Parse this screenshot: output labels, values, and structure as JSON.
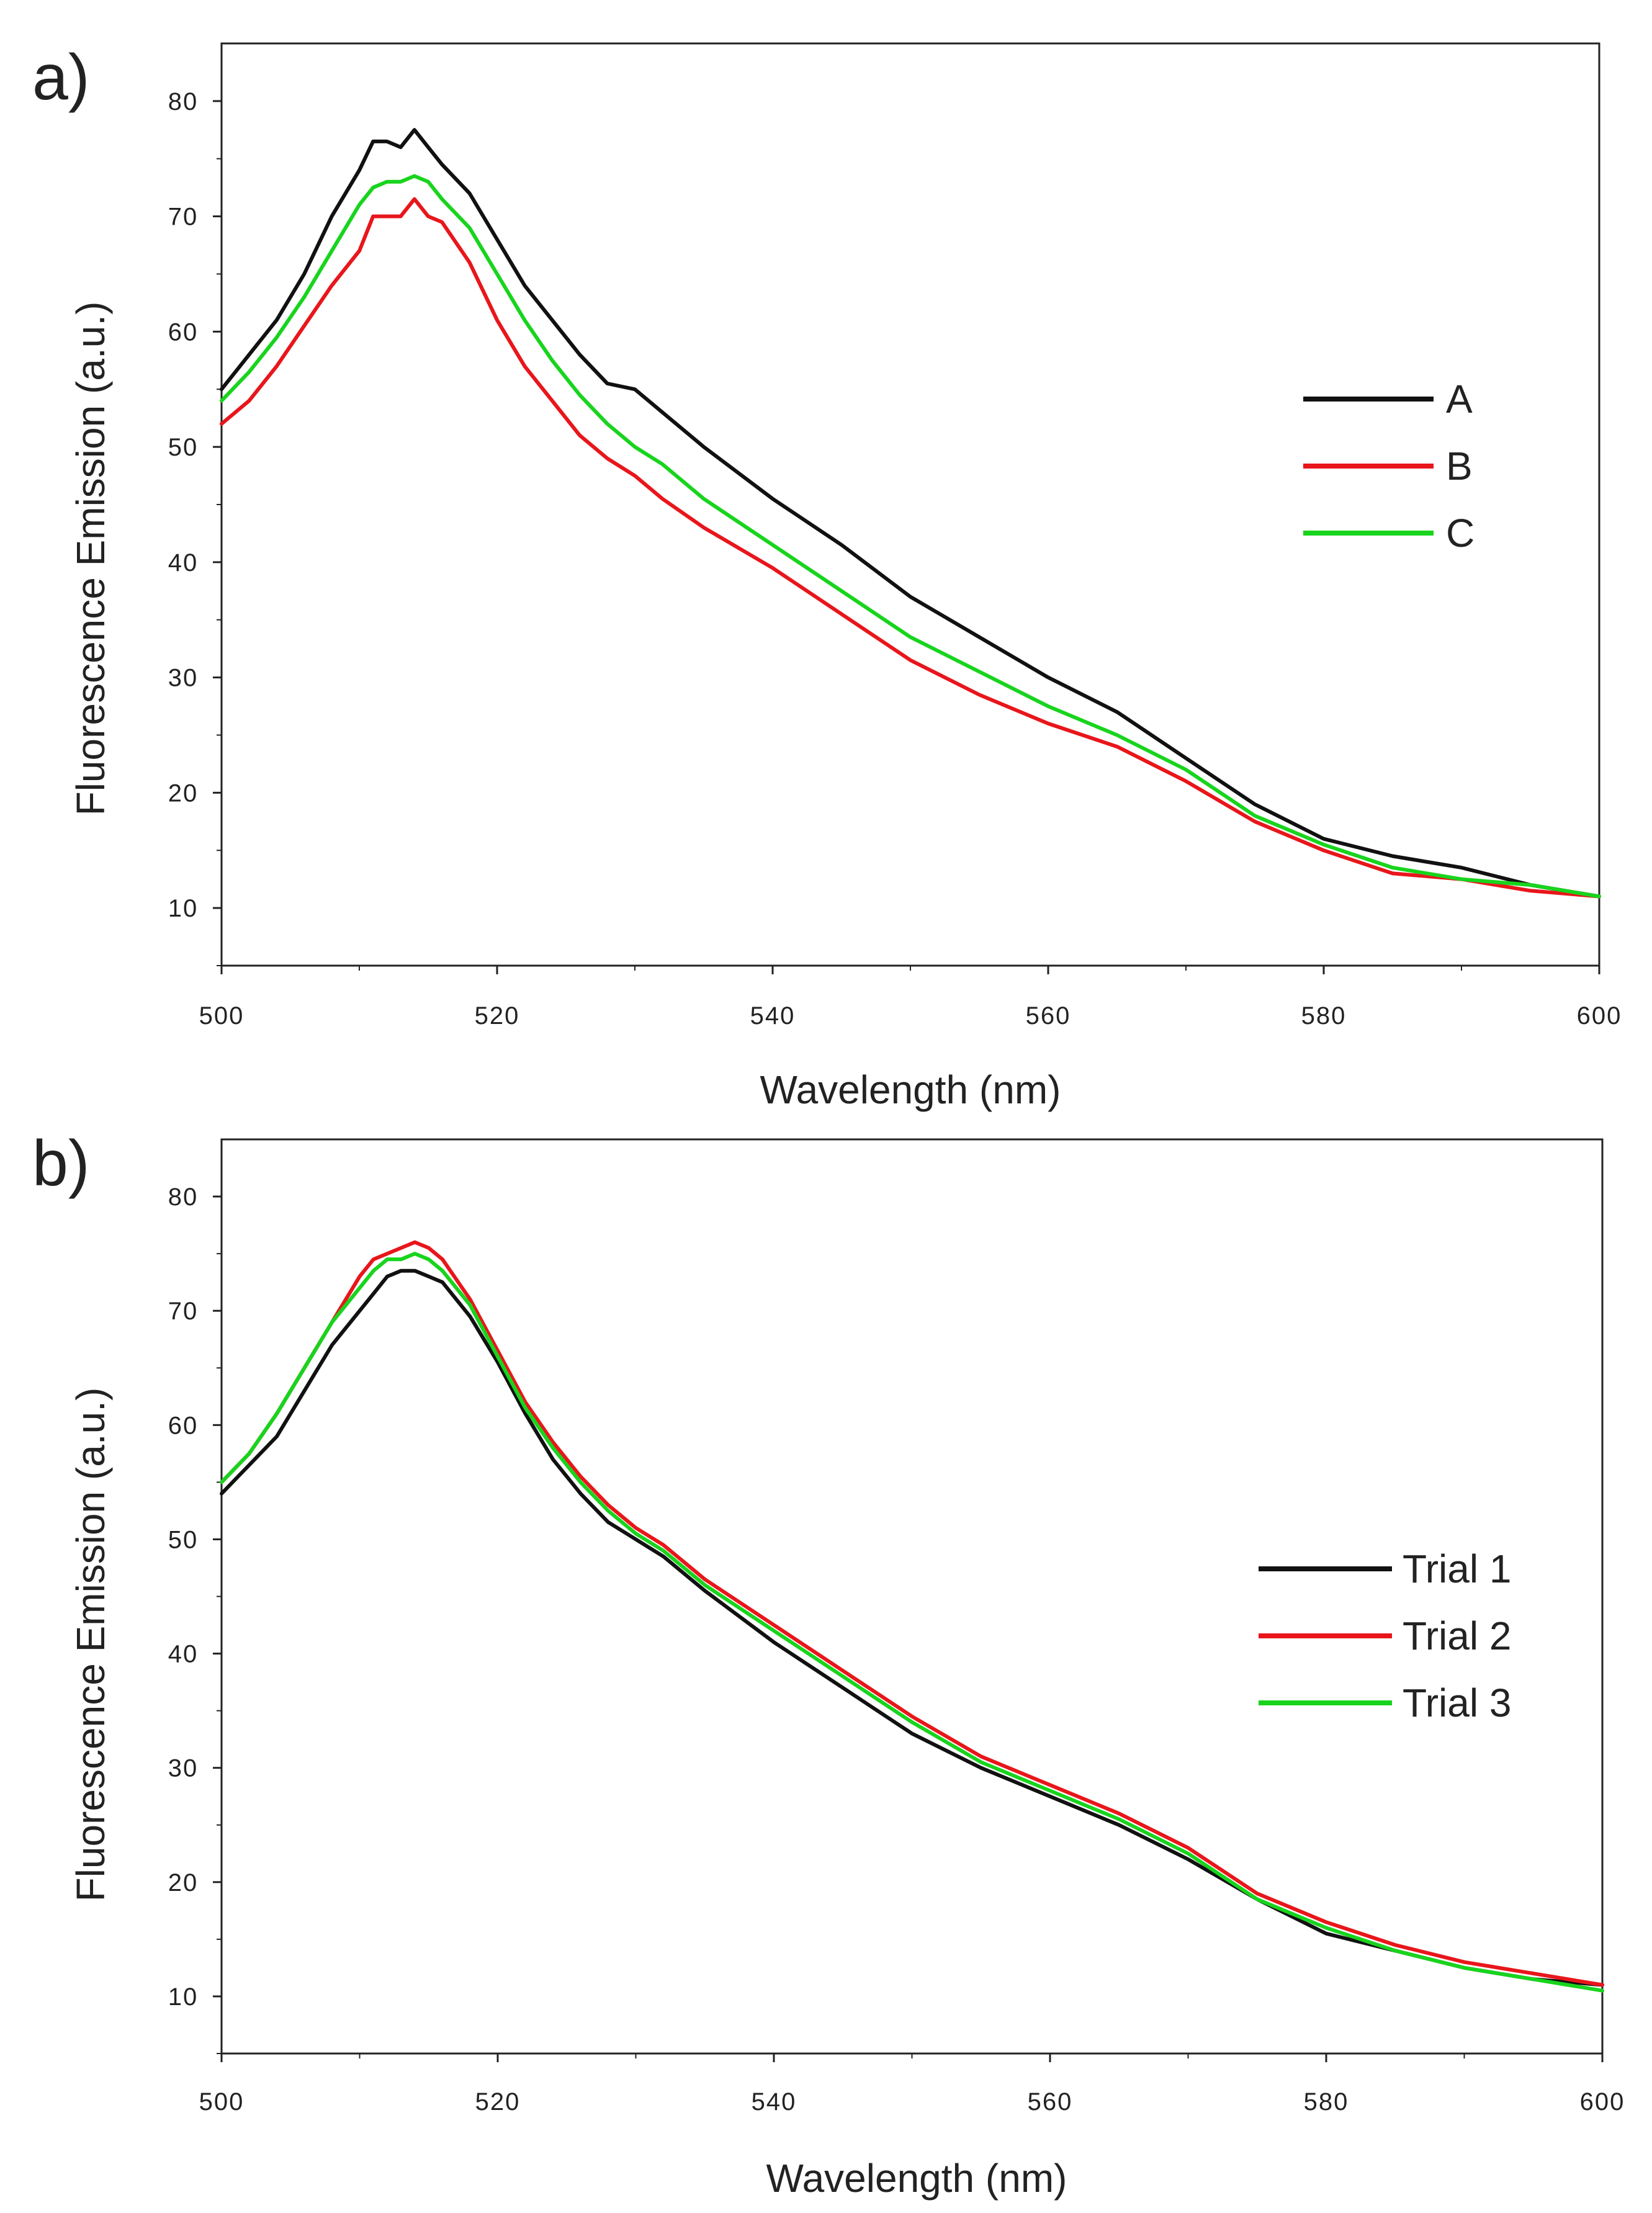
{
  "figure": {
    "panels": [
      "a",
      "b"
    ]
  },
  "colors": {
    "black": "#111111",
    "red": "#e8161b",
    "green": "#18d41d",
    "axis": "#222222"
  },
  "chart_data": [
    {
      "panel_label": "a)",
      "type": "line",
      "xlabel": "Wavelength (nm)",
      "ylabel": "Fluorescence Emission (a.u.)",
      "xlim": [
        500,
        600
      ],
      "ylim": [
        5,
        85
      ],
      "x_ticks": [
        500,
        520,
        540,
        560,
        580,
        600
      ],
      "y_ticks": [
        10,
        20,
        30,
        40,
        50,
        60,
        70,
        80
      ],
      "legend_position": "right",
      "grid": false,
      "x": [
        500,
        502,
        504,
        506,
        508,
        510,
        511,
        512,
        513,
        514,
        515,
        516,
        518,
        520,
        522,
        524,
        526,
        528,
        530,
        532,
        535,
        540,
        545,
        550,
        555,
        560,
        565,
        570,
        575,
        580,
        585,
        590,
        595,
        600
      ],
      "series": [
        {
          "name": "A",
          "color": "#111111",
          "values": [
            55,
            58,
            61,
            65,
            70,
            74,
            76.5,
            76.5,
            76,
            77.5,
            76,
            74.5,
            72,
            68,
            64,
            61,
            58,
            55.5,
            55,
            53,
            50,
            45.5,
            41.5,
            37,
            33.5,
            30,
            27,
            23,
            19,
            16,
            14.5,
            13.5,
            12,
            11
          ]
        },
        {
          "name": "B",
          "color": "#e8161b",
          "values": [
            52,
            54,
            57,
            60.5,
            64,
            67,
            70,
            70,
            70,
            71.5,
            70,
            69.5,
            66,
            61,
            57,
            54,
            51,
            49,
            47.5,
            45.5,
            43,
            39.5,
            35.5,
            31.5,
            28.5,
            26,
            24,
            21,
            17.5,
            15,
            13,
            12.5,
            11.5,
            11
          ]
        },
        {
          "name": "C",
          "color": "#18d41d",
          "values": [
            54,
            56.5,
            59.5,
            63,
            67,
            71,
            72.5,
            73,
            73,
            73.5,
            73,
            71.5,
            69,
            65,
            61,
            57.5,
            54.5,
            52,
            50,
            48.5,
            45.5,
            41.5,
            37.5,
            33.5,
            30.5,
            27.5,
            25,
            22,
            18,
            15.5,
            13.5,
            12.5,
            12,
            11
          ]
        }
      ]
    },
    {
      "panel_label": "b)",
      "type": "line",
      "xlabel": "Wavelength (nm)",
      "ylabel": "Fluorescence Emission (a.u.)",
      "xlim": [
        500,
        600
      ],
      "ylim": [
        5,
        85
      ],
      "x_ticks": [
        500,
        520,
        540,
        560,
        580,
        600
      ],
      "y_ticks": [
        10,
        20,
        30,
        40,
        50,
        60,
        70,
        80
      ],
      "legend_position": "right",
      "grid": false,
      "x": [
        500,
        502,
        504,
        506,
        508,
        510,
        511,
        512,
        513,
        514,
        515,
        516,
        518,
        520,
        522,
        524,
        526,
        528,
        530,
        532,
        535,
        540,
        545,
        550,
        555,
        560,
        565,
        570,
        575,
        580,
        585,
        590,
        595,
        600
      ],
      "series": [
        {
          "name": "Trial 1",
          "color": "#111111",
          "values": [
            54,
            56.5,
            59,
            63,
            67,
            70,
            71.5,
            73,
            73.5,
            73.5,
            73,
            72.5,
            69.5,
            65.5,
            61,
            57,
            54,
            51.5,
            50,
            48.5,
            45.5,
            41,
            37,
            33,
            30,
            27.5,
            25,
            22,
            18.5,
            15.5,
            14,
            12.5,
            11.5,
            11
          ]
        },
        {
          "name": "Trial 2",
          "color": "#e8161b",
          "values": [
            55,
            57.5,
            61,
            65,
            69,
            73,
            74.5,
            75,
            75.5,
            76,
            75.5,
            74.5,
            71,
            66.5,
            62,
            58.5,
            55.5,
            53,
            51,
            49.5,
            46.5,
            42.5,
            38.5,
            34.5,
            31,
            28.5,
            26,
            23,
            19,
            16.5,
            14.5,
            13,
            12,
            11
          ]
        },
        {
          "name": "Trial 3",
          "color": "#18d41d",
          "values": [
            55,
            57.5,
            61,
            65,
            69,
            72,
            73.5,
            74.5,
            74.5,
            75,
            74.5,
            73.5,
            70.5,
            66,
            61.5,
            58,
            55,
            52.5,
            50.5,
            49,
            46,
            42,
            38,
            34,
            30.5,
            28,
            25.5,
            22.5,
            18.5,
            16,
            14,
            12.5,
            11.5,
            10.5
          ]
        }
      ]
    }
  ]
}
